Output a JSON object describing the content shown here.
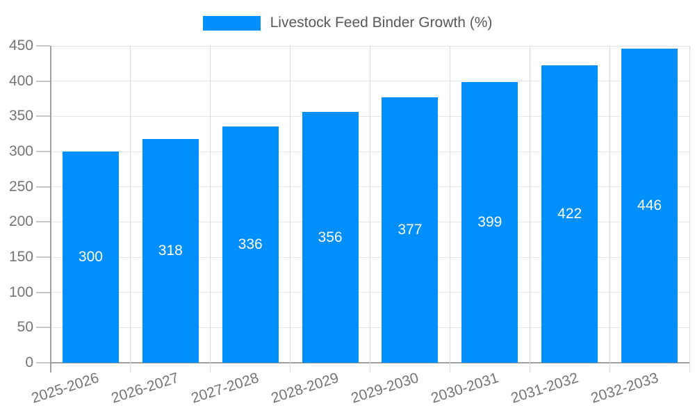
{
  "chart_data": {
    "type": "bar",
    "title": "Livestock Feed Binder Growth (%)",
    "categories": [
      "2025-2026",
      "2026-2027",
      "2027-2028",
      "2028-2029",
      "2029-2030",
      "2030-2031",
      "2031-2032",
      "2032-2033"
    ],
    "values": [
      300,
      318,
      336,
      356,
      377,
      399,
      422,
      446
    ],
    "xlabel": "",
    "ylabel": "",
    "ylim": [
      0,
      450
    ],
    "yticks": [
      0,
      50,
      100,
      150,
      200,
      250,
      300,
      350,
      400,
      450
    ],
    "grid": true,
    "legend_position": "top",
    "x_label_rotation_deg": -18,
    "colors": {
      "bar": "#008ffb",
      "bar_label": "#ffffff",
      "axis_text": "#757575",
      "legend_text": "#58595b",
      "gridline": "#e6e6e6",
      "boundary_line": "#d9d9d9",
      "axis_line": "#a0a0a0",
      "background": "#ffffff"
    }
  }
}
